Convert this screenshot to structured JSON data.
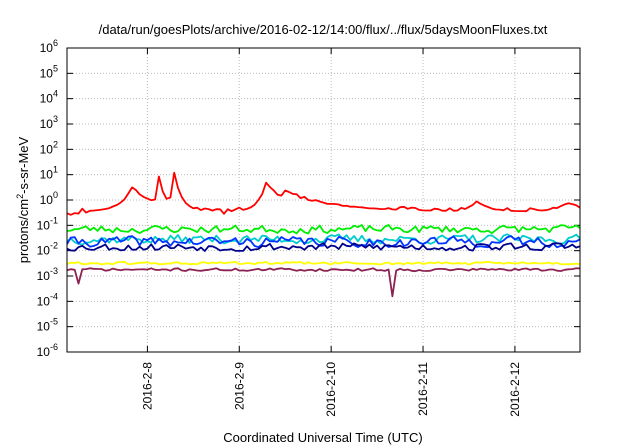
{
  "chart_data": {
    "type": "line",
    "title": "/data/run/goesPlots/archive/2016-02-12/14:00/flux/../flux/5daysMoonFluxes.txt",
    "xlabel": "Coordinated Universal Time (UTC)",
    "ylabel": "protons/cm2-s-sr-MeV",
    "ylabel_parts": [
      "protons/cm",
      "2",
      "-s-sr-MeV"
    ],
    "yscale": "log",
    "ylim_exponent": [
      -6,
      6
    ],
    "y_ticks": [
      {
        "base": "10",
        "exp": "6"
      },
      {
        "base": "10",
        "exp": "5"
      },
      {
        "base": "10",
        "exp": "4"
      },
      {
        "base": "10",
        "exp": "3"
      },
      {
        "base": "10",
        "exp": "2"
      },
      {
        "base": "10",
        "exp": "1"
      },
      {
        "base": "10",
        "exp": "0"
      },
      {
        "base": "10",
        "exp": "-1"
      },
      {
        "base": "10",
        "exp": "-2"
      },
      {
        "base": "10",
        "exp": "-3"
      },
      {
        "base": "10",
        "exp": "-4"
      },
      {
        "base": "10",
        "exp": "-5"
      },
      {
        "base": "10",
        "exp": "-6"
      }
    ],
    "xlim": [
      "2016-02-07T03:00",
      "2016-02-12T17:00"
    ],
    "x_ticks": [
      {
        "label": "2016-2-8",
        "t": "2016-02-08T00:00"
      },
      {
        "label": "2016-2-9",
        "t": "2016-02-09T00:00"
      },
      {
        "label": "2016-2-10",
        "t": "2016-02-10T00:00"
      },
      {
        "label": "2016-2-11",
        "t": "2016-02-11T00:00"
      },
      {
        "label": "2016-2-12",
        "t": "2016-02-12T00:00"
      }
    ],
    "grid": true,
    "legend": "none",
    "series": [
      {
        "color": "#ff0000",
        "base_exp": -0.45,
        "noise": 0.14,
        "seed": 11,
        "events": [
          {
            "t": "2016-02-07T20:00",
            "rise_hours": 3,
            "decay_hours": 6,
            "exp_peak": 0.55
          },
          {
            "t": "2016-02-08T03:00",
            "rise_hours": 1,
            "decay_hours": 2,
            "exp_peak": 0.9
          },
          {
            "t": "2016-02-08T07:00",
            "rise_hours": 1,
            "decay_hours": 2,
            "exp_peak": 1.1
          },
          {
            "t": "2016-02-09T07:00",
            "rise_hours": 2,
            "decay_hours": 6,
            "exp_peak": 0.7
          },
          {
            "t": "2016-02-09T12:00",
            "rise_hours": 3,
            "decay_hours": 12,
            "exp_peak": 0.35
          },
          {
            "t": "2016-02-11T14:00",
            "rise_hours": 2,
            "decay_hours": 3,
            "exp_peak": 0.0
          },
          {
            "t": "2016-02-12T14:00",
            "rise_hours": 3,
            "decay_hours": 4,
            "exp_peak": -0.1
          }
        ]
      },
      {
        "color": "#00ee00",
        "base_exp": -1.15,
        "noise": 0.14,
        "seed": 23
      },
      {
        "color": "#00cccc",
        "base_exp": -1.55,
        "noise": 0.16,
        "seed": 37
      },
      {
        "color": "#0033ff",
        "base_exp": -1.65,
        "noise": 0.18,
        "seed": 41
      },
      {
        "color": "#00008b",
        "base_exp": -1.85,
        "noise": 0.14,
        "seed": 53
      },
      {
        "color": "#ffff00",
        "base_exp": -2.5,
        "noise": 0.05,
        "seed": 61
      },
      {
        "color": "#8b2252",
        "base_exp": -2.75,
        "noise": 0.05,
        "seed": 71,
        "dips": [
          {
            "t": "2016-02-07T03:30",
            "exp": -3.5
          },
          {
            "t": "2016-02-07T06:00",
            "exp": -3.3
          },
          {
            "t": "2016-02-10T16:00",
            "exp": -3.8
          }
        ]
      }
    ]
  }
}
